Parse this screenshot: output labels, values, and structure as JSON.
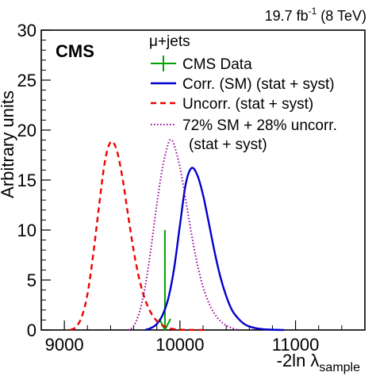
{
  "chart_data": {
    "type": "line",
    "title": "",
    "lumi_label": "19.7 fb",
    "lumi_exponent": "-1",
    "lumi_suffix": " (8 TeV)",
    "experiment_label": "CMS",
    "ylabel": "Arbitrary units",
    "xlabel": "-2ln λ",
    "xlabel_subscript": "sample",
    "xlim": [
      8800,
      11600
    ],
    "ylim": [
      0,
      30
    ],
    "x_ticks": [
      9000,
      10000,
      11000
    ],
    "y_ticks": [
      0,
      5,
      10,
      15,
      20,
      25,
      30
    ],
    "legend_header": "μ+jets",
    "legend_position": "top-right",
    "grid": false,
    "series": [
      {
        "name": "CMS Data",
        "kind": "data-marker",
        "color": "#00a000",
        "style": "solid",
        "x": 9870,
        "y": 10
      },
      {
        "name": "Corr. (SM) (stat + syst)",
        "color": "#0000cc",
        "style": "solid",
        "x": [
          9700,
          9750,
          9800,
          9850,
          9900,
          9950,
          10000,
          10050,
          10100,
          10150,
          10200,
          10250,
          10300,
          10350,
          10400,
          10450,
          10500,
          10550,
          10600,
          10700,
          10800,
          10900
        ],
        "y": [
          0,
          0.2,
          0.6,
          1.5,
          3.2,
          6.2,
          10.5,
          14.6,
          16.2,
          15.5,
          13.5,
          10.7,
          7.8,
          5.3,
          3.4,
          2.0,
          1.2,
          0.65,
          0.35,
          0.1,
          0.03,
          0
        ]
      },
      {
        "name": "Uncorr. (stat + syst)",
        "color": "#ee0000",
        "style": "dashed",
        "x": [
          9050,
          9100,
          9150,
          9200,
          9250,
          9300,
          9350,
          9400,
          9450,
          9500,
          9550,
          9600,
          9650,
          9700,
          9750,
          9800,
          9850,
          9900,
          9950,
          10000,
          10100,
          10200
        ],
        "y": [
          0,
          0.3,
          1.3,
          3.6,
          7.6,
          12.4,
          16.8,
          18.8,
          18.1,
          15.4,
          11.6,
          7.9,
          5.0,
          3.0,
          1.7,
          0.9,
          0.45,
          0.2,
          0.08,
          0.03,
          0.01,
          0
        ]
      },
      {
        "name": "72% SM + 28% uncorr.",
        "name_line2": "(stat + syst)",
        "color": "#990099",
        "style": "dotted",
        "x": [
          9550,
          9600,
          9650,
          9700,
          9750,
          9800,
          9850,
          9900,
          9925,
          9950,
          10000,
          10050,
          10100,
          10150,
          10200,
          10250,
          10300,
          10350,
          10400,
          10450,
          10500
        ],
        "y": [
          0,
          0.4,
          1.8,
          4.4,
          8.2,
          12.6,
          16.3,
          18.7,
          19.0,
          18.5,
          16.3,
          13.0,
          9.6,
          6.6,
          4.3,
          2.7,
          1.6,
          0.9,
          0.45,
          0.2,
          0
        ]
      }
    ]
  }
}
